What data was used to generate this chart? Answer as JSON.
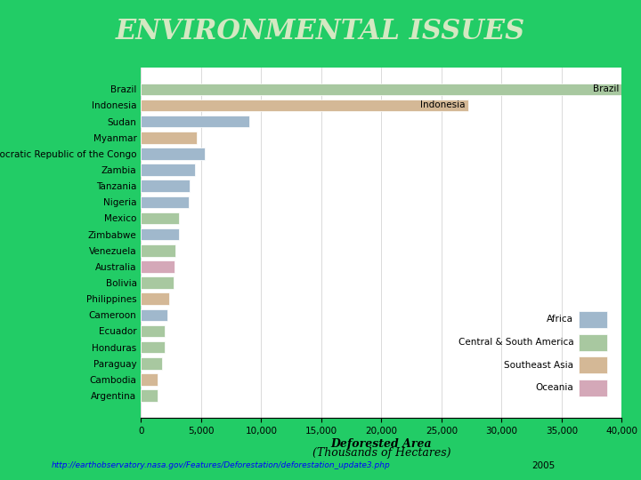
{
  "title": "ENVIRONMENTAL ISSUES",
  "title_color": "#d4e8c2",
  "bg_color": "#22cc66",
  "chart_bg": "#ffffff",
  "url_text": "http://earthobservatory.nasa.gov/Features/Deforestation/deforestation_update3.php",
  "year_text": "2005",
  "countries": [
    "Brazil",
    "Indonesia",
    "Sudan",
    "Myanmar",
    "Democratic Republic of the Congo",
    "Zambia",
    "Tanzania",
    "Nigeria",
    "Mexico",
    "Zimbabwe",
    "Venezuela",
    "Australia",
    "Bolivia",
    "Philippines",
    "Cameroon",
    "Ecuador",
    "Honduras",
    "Paraguay",
    "Cambodia",
    "Argentina"
  ],
  "values": [
    40000,
    27200,
    9000,
    4640,
    5320,
    4460,
    4050,
    4000,
    3130,
    3140,
    2880,
    2760,
    2700,
    2360,
    2200,
    1980,
    1960,
    1740,
    1400,
    1400
  ],
  "colors": [
    "#a8c8a0",
    "#d4b896",
    "#a0b8cc",
    "#d4b896",
    "#a0b8cc",
    "#a0b8cc",
    "#a0b8cc",
    "#a0b8cc",
    "#a8c8a0",
    "#a0b8cc",
    "#a8c8a0",
    "#d4a8b8",
    "#a8c8a0",
    "#d4b896",
    "#a0b8cc",
    "#a8c8a0",
    "#a8c8a0",
    "#a8c8a0",
    "#d4b896",
    "#a8c8a0"
  ],
  "legend_names": [
    "Africa",
    "Central & South America",
    "Southeast Asia",
    "Oceania"
  ],
  "legend_colors": [
    "#a0b8cc",
    "#a8c8a0",
    "#d4b896",
    "#d4a8b8"
  ],
  "xlim": [
    0,
    40000
  ],
  "xticks": [
    0,
    5000,
    10000,
    15000,
    20000,
    25000,
    30000,
    35000,
    40000
  ]
}
